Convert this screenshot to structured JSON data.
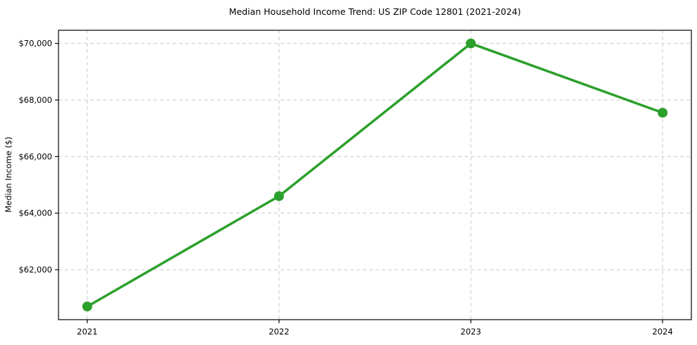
{
  "chart": {
    "title": "Median Household Income Trend: US ZIP Code 12801 (2021-2024)",
    "ylabel": "Median Income ($)"
  },
  "chart_data": {
    "type": "line",
    "title": "Median Household Income Trend: US ZIP Code 12801 (2021-2024)",
    "xlabel": "",
    "ylabel": "Median Income ($)",
    "categories": [
      "2021",
      "2022",
      "2023",
      "2024"
    ],
    "values": [
      60700,
      64600,
      70000,
      67550
    ],
    "yticks": [
      62000,
      64000,
      66000,
      68000,
      70000
    ],
    "ytick_labels": [
      "$62,000",
      "$64,000",
      "$66,000",
      "$68,000",
      "$70,000"
    ],
    "ylim": [
      60235,
      70465
    ],
    "grid": true,
    "legend_position": "none",
    "line_color": "#2ca02c",
    "marker": "circle",
    "grid_color": "#c8c8c8",
    "spine_color": "#000000"
  }
}
